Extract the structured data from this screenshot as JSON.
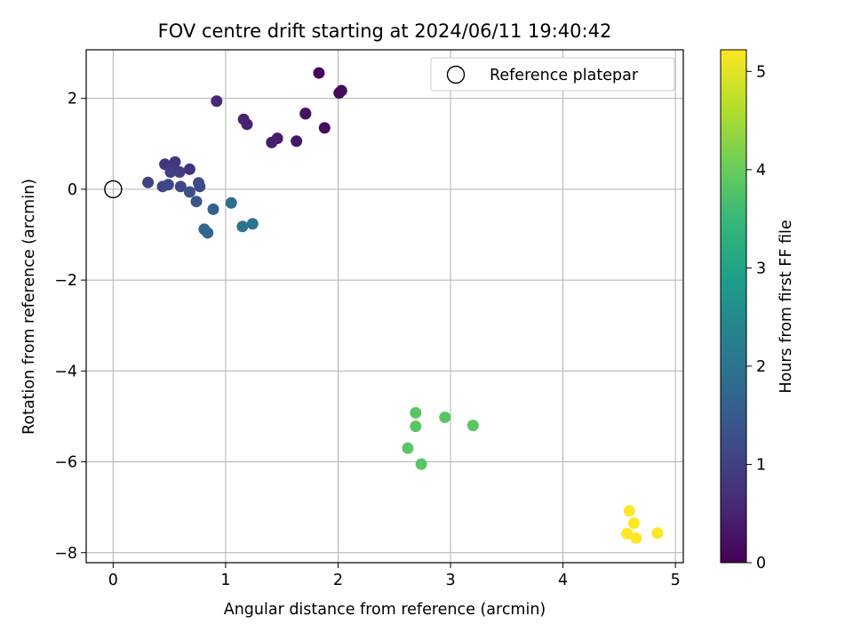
{
  "chart_data": {
    "type": "scatter",
    "title": "FOV centre drift starting at 2024/06/11 19:40:42",
    "xlabel": "Angular distance from reference (arcmin)",
    "ylabel": "Rotation from reference (arcmin)",
    "xlim": [
      -0.24,
      5.07
    ],
    "ylim": [
      -8.22,
      3.07
    ],
    "xticks": [
      0,
      1,
      2,
      3,
      4,
      5
    ],
    "yticks": [
      -8,
      -6,
      -4,
      -2,
      0,
      2
    ],
    "xtick_labels": [
      "0",
      "1",
      "2",
      "3",
      "4",
      "5"
    ],
    "ytick_labels": [
      "−8",
      "−6",
      "−4",
      "−2",
      "0",
      "2"
    ],
    "grid": true,
    "legend": {
      "placement": "top-right",
      "entries": [
        {
          "label": "Reference platepar",
          "marker": "open-circle",
          "color": "#000000"
        }
      ]
    },
    "reference_point": {
      "x": 0,
      "y": 0
    },
    "colorbar": {
      "label": "Hours from first FF file",
      "range": [
        0,
        5.22
      ],
      "ticks": [
        0,
        1,
        2,
        3,
        4,
        5
      ],
      "tick_labels": [
        "0",
        "1",
        "2",
        "3",
        "4",
        "5"
      ],
      "colormap": "viridis",
      "stops": [
        "#440154",
        "#482878",
        "#3e4989",
        "#31688e",
        "#26828e",
        "#1f9e89",
        "#35b779",
        "#6ece58",
        "#b5de2b",
        "#fde725"
      ]
    },
    "points": [
      {
        "x": 1.83,
        "y": 2.56,
        "c": 0.08
      },
      {
        "x": 2.03,
        "y": 2.17,
        "c": 0.12
      },
      {
        "x": 2.01,
        "y": 2.12,
        "c": 0.15
      },
      {
        "x": 1.88,
        "y": 1.35,
        "c": 0.2
      },
      {
        "x": 1.71,
        "y": 1.66,
        "c": 0.25
      },
      {
        "x": 1.71,
        "y": 1.67,
        "c": 0.28
      },
      {
        "x": 1.63,
        "y": 1.06,
        "c": 0.32
      },
      {
        "x": 1.46,
        "y": 1.12,
        "c": 0.38
      },
      {
        "x": 1.41,
        "y": 1.03,
        "c": 0.42
      },
      {
        "x": 1.19,
        "y": 1.43,
        "c": 0.48
      },
      {
        "x": 1.16,
        "y": 1.54,
        "c": 0.52
      },
      {
        "x": 0.92,
        "y": 1.94,
        "c": 0.58
      },
      {
        "x": 0.68,
        "y": 0.44,
        "c": 0.75
      },
      {
        "x": 0.55,
        "y": 0.6,
        "c": 0.8
      },
      {
        "x": 0.46,
        "y": 0.55,
        "c": 0.85
      },
      {
        "x": 0.52,
        "y": 0.45,
        "c": 0.9
      },
      {
        "x": 0.59,
        "y": 0.38,
        "c": 0.95
      },
      {
        "x": 0.51,
        "y": 0.38,
        "c": 1.0
      },
      {
        "x": 0.31,
        "y": 0.15,
        "c": 1.05
      },
      {
        "x": 0.44,
        "y": 0.06,
        "c": 1.1
      },
      {
        "x": 0.49,
        "y": 0.1,
        "c": 1.12
      },
      {
        "x": 0.6,
        "y": 0.06,
        "c": 1.15
      },
      {
        "x": 0.76,
        "y": 0.14,
        "c": 1.18
      },
      {
        "x": 0.77,
        "y": 0.06,
        "c": 1.2
      },
      {
        "x": 0.68,
        "y": -0.06,
        "c": 1.25
      },
      {
        "x": 0.74,
        "y": -0.27,
        "c": 1.35
      },
      {
        "x": 0.89,
        "y": -0.44,
        "c": 1.6
      },
      {
        "x": 0.81,
        "y": -0.88,
        "c": 1.7
      },
      {
        "x": 0.84,
        "y": -0.96,
        "c": 1.72
      },
      {
        "x": 1.05,
        "y": -0.3,
        "c": 1.9
      },
      {
        "x": 1.15,
        "y": -0.82,
        "c": 2.0
      },
      {
        "x": 1.24,
        "y": -0.76,
        "c": 2.05
      },
      {
        "x": 2.69,
        "y": -4.92,
        "c": 3.85
      },
      {
        "x": 2.69,
        "y": -5.22,
        "c": 3.85
      },
      {
        "x": 2.95,
        "y": -5.02,
        "c": 3.85
      },
      {
        "x": 3.2,
        "y": -5.2,
        "c": 3.85
      },
      {
        "x": 2.62,
        "y": -5.7,
        "c": 3.85
      },
      {
        "x": 2.74,
        "y": -6.05,
        "c": 3.85
      },
      {
        "x": 4.59,
        "y": -7.08,
        "c": 5.22
      },
      {
        "x": 4.63,
        "y": -7.35,
        "c": 5.22
      },
      {
        "x": 4.57,
        "y": -7.58,
        "c": 5.22
      },
      {
        "x": 4.84,
        "y": -7.57,
        "c": 5.22
      },
      {
        "x": 4.65,
        "y": -7.68,
        "c": 5.22
      }
    ]
  }
}
